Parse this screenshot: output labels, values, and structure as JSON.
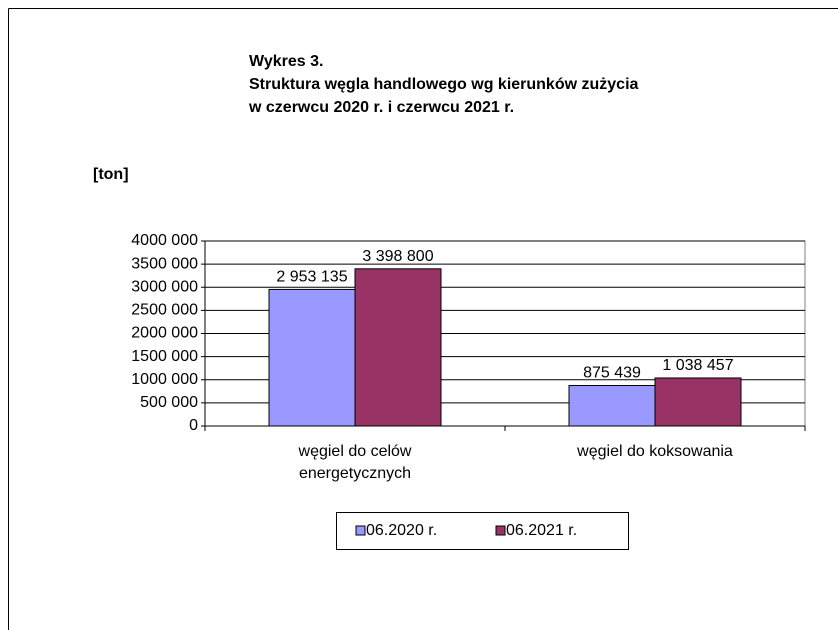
{
  "chart_data": {
    "type": "bar",
    "title": "Wykres 3.",
    "subtitle": [
      "Struktura węgla handlowego wg kierunków zużycia",
      "w czerwcu 2020 r. i czerwcu 2021 r."
    ],
    "y_label": "[ton]",
    "categories": [
      "węgiel do celów energetycznych",
      "węgiel do koksowania"
    ],
    "series": [
      {
        "name": "06.2020 r.",
        "color": "#9999ff",
        "values": [
          2953135,
          875439
        ],
        "value_labels": [
          "2 953 135",
          "875 439"
        ]
      },
      {
        "name": "06.2021 r.",
        "color": "#993366",
        "values": [
          3398800,
          1038457
        ],
        "value_labels": [
          "3 398 800",
          "1 038 457"
        ]
      }
    ],
    "ylim": [
      0,
      4000000
    ],
    "yticks": [
      0,
      {
        "value": 500000,
        "label": "500 000"
      },
      {
        "value": 1000000,
        "label": "1000 000"
      },
      {
        "value": 1500000,
        "label": "1500 000"
      },
      {
        "value": 2000000,
        "label": "2000 000"
      },
      {
        "value": 2500000,
        "label": "2500 000"
      },
      {
        "value": 3000000,
        "label": "3000 000"
      },
      {
        "value": 3500000,
        "label": "3500 000"
      },
      {
        "value": 4000000,
        "label": "4000 000"
      }
    ],
    "grid": true,
    "legend": "bottom"
  }
}
